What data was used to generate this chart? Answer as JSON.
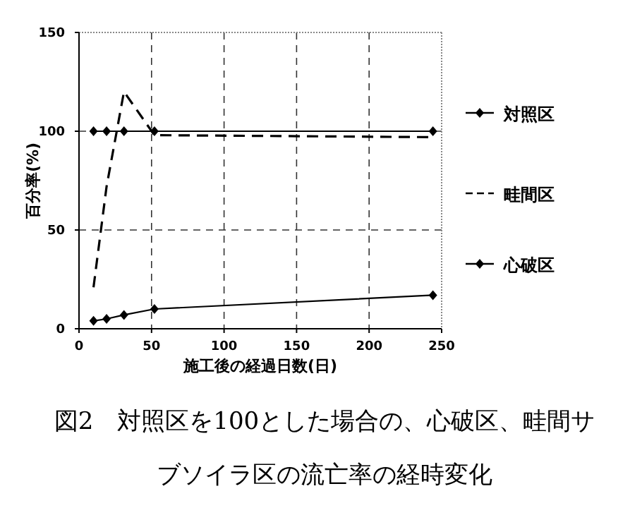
{
  "chart_data": {
    "type": "line",
    "title": "図2　対照区を100とした場合の、心破区、畦間サブソイラ区の流亡率の経時変化",
    "xlabel": "施工後の経過日数(日)",
    "ylabel": "百分率(%)",
    "xlim": [
      0,
      250
    ],
    "xticks": [
      0,
      50,
      100,
      150,
      200,
      250
    ],
    "ylim": [
      0,
      150
    ],
    "yticks": [
      0,
      50,
      100,
      150
    ],
    "grid": true,
    "legend": "right",
    "series": [
      {
        "name": "対照区",
        "color": "#000000",
        "marker": "diamond",
        "line_style": "solid",
        "x": [
          10,
          19,
          31,
          52,
          244
        ],
        "values": [
          100,
          100,
          100,
          100,
          100
        ]
      },
      {
        "name": "畦間区",
        "color": "#000000",
        "marker": "none",
        "line_style": "dashed",
        "x": [
          10,
          19,
          31,
          52,
          244
        ],
        "values": [
          21,
          72,
          120,
          98,
          97
        ]
      },
      {
        "name": "心破区",
        "color": "#000000",
        "marker": "diamond",
        "line_style": "solid",
        "x": [
          10,
          19,
          31,
          52,
          244
        ],
        "values": [
          4,
          5,
          7,
          10,
          17
        ]
      }
    ]
  }
}
